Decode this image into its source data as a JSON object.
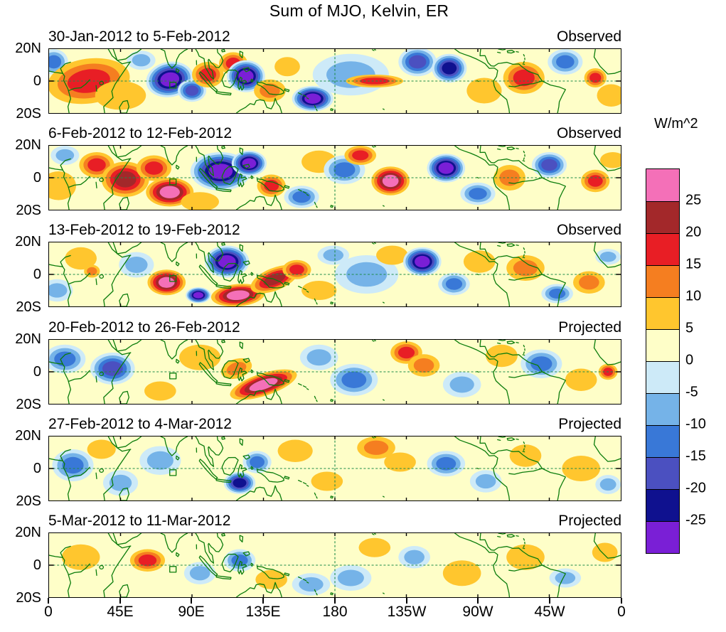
{
  "figure": {
    "title": "Sum of MJO, Kelvin, ER"
  },
  "chart_data": {
    "type": "heatmap",
    "title": "Sum of MJO, Kelvin, ER",
    "description_text": "Six weekly tropical-strip (20S-20N) filled-contour anomaly maps",
    "x_ticks": [
      "0",
      "45E",
      "90E",
      "135E",
      "180",
      "135W",
      "90W",
      "45W",
      "0"
    ],
    "y_ticks": [
      "20N",
      "0",
      "20S"
    ],
    "lon_range": [
      0,
      360
    ],
    "lat_range": [
      -20,
      20
    ],
    "colorbar": {
      "label": "W/m^2",
      "tick_labels": [
        "25",
        "20",
        "15",
        "10",
        "5",
        "0",
        "-5",
        "-10",
        "-15",
        "-20",
        "-25"
      ],
      "cells_top_to_bottom": [
        "#F470B8",
        "#A3282A",
        "#E81E25",
        "#F57E20",
        "#FFC62E",
        "#FEFEC8",
        "#CDEAF8",
        "#75B3E8",
        "#3978D7",
        "#4B50C0",
        "#0F118F",
        "#7A1FD6"
      ]
    },
    "map_colors": {
      "coastline": "#0B7C0B",
      "grid_dash": "#1E8C4A",
      "background": "#FEFEC8"
    },
    "panels": [
      {
        "date_range": "30-Jan-2012 to 5-Feb-2012",
        "status": "Observed",
        "anomalies": [
          [
            3,
            12,
            9,
            8,
            -12,
            0
          ],
          [
            25,
            0,
            26,
            14,
            18,
            -8
          ],
          [
            45,
            -9,
            16,
            9,
            8,
            0
          ],
          [
            58,
            13,
            9,
            6,
            -10,
            0
          ],
          [
            76,
            1,
            15,
            11,
            -28,
            -10
          ],
          [
            90,
            -6,
            9,
            7,
            -16,
            0
          ],
          [
            100,
            4,
            10,
            8,
            16,
            0
          ],
          [
            116,
            11,
            9,
            7,
            18,
            0
          ],
          [
            124,
            3,
            12,
            10,
            -27,
            0
          ],
          [
            139,
            -6,
            10,
            7,
            14,
            0
          ],
          [
            150,
            9,
            8,
            6,
            10,
            0
          ],
          [
            166,
            -11,
            13,
            8,
            -27,
            0
          ],
          [
            190,
            4,
            24,
            13,
            -6,
            0
          ],
          [
            205,
            0,
            18,
            4,
            16,
            0
          ],
          [
            232,
            12,
            12,
            9,
            -16,
            0
          ],
          [
            252,
            8,
            11,
            9,
            -24,
            0
          ],
          [
            274,
            -6,
            11,
            8,
            8,
            0
          ],
          [
            299,
            2,
            13,
            10,
            16,
            0
          ],
          [
            325,
            12,
            11,
            8,
            -14,
            0
          ],
          [
            344,
            2,
            7,
            6,
            18,
            0
          ],
          [
            354,
            -9,
            9,
            7,
            8,
            0
          ]
        ]
      },
      {
        "date_range": "6-Feb-2012 to 12-Feb-2012",
        "status": "Observed",
        "anomalies": [
          [
            6,
            -5,
            11,
            9,
            8,
            0
          ],
          [
            10,
            14,
            9,
            6,
            -10,
            0
          ],
          [
            30,
            8,
            11,
            8,
            16,
            0
          ],
          [
            48,
            -1,
            15,
            11,
            22,
            0
          ],
          [
            66,
            6,
            11,
            8,
            18,
            0
          ],
          [
            76,
            -9,
            15,
            9,
            28,
            0
          ],
          [
            95,
            -15,
            12,
            6,
            10,
            0
          ],
          [
            108,
            4,
            19,
            12,
            -28,
            0
          ],
          [
            126,
            9,
            11,
            8,
            -26,
            0
          ],
          [
            140,
            -5,
            9,
            7,
            16,
            0
          ],
          [
            159,
            -12,
            11,
            7,
            -14,
            0
          ],
          [
            170,
            10,
            11,
            7,
            8,
            0
          ],
          [
            186,
            5,
            13,
            9,
            -12,
            0
          ],
          [
            196,
            14,
            10,
            6,
            18,
            0
          ],
          [
            215,
            -2,
            12,
            9,
            27,
            0
          ],
          [
            250,
            6,
            12,
            9,
            -26,
            0
          ],
          [
            270,
            -10,
            11,
            7,
            -14,
            0
          ],
          [
            290,
            0,
            10,
            8,
            12,
            0
          ],
          [
            315,
            8,
            11,
            8,
            -16,
            0
          ],
          [
            344,
            -2,
            9,
            7,
            20,
            0
          ],
          [
            355,
            11,
            8,
            5,
            8,
            0
          ]
        ]
      },
      {
        "date_range": "13-Feb-2012 to 19-Feb-2012",
        "status": "Observed",
        "anomalies": [
          [
            5,
            -10,
            10,
            7,
            -8,
            0
          ],
          [
            20,
            10,
            10,
            7,
            6,
            0
          ],
          [
            27,
            2,
            5,
            4,
            12,
            0
          ],
          [
            55,
            6,
            11,
            8,
            -10,
            0
          ],
          [
            74,
            -5,
            12,
            8,
            26,
            0
          ],
          [
            94,
            -13,
            8,
            5,
            -27,
            0
          ],
          [
            112,
            8,
            14,
            10,
            -28,
            0
          ],
          [
            119,
            -13,
            17,
            7,
            28,
            -5
          ],
          [
            142,
            -3,
            16,
            7,
            24,
            -22
          ],
          [
            156,
            3,
            9,
            6,
            18,
            0
          ],
          [
            170,
            -10,
            11,
            6,
            8,
            0
          ],
          [
            179,
            12,
            10,
            6,
            -10,
            0
          ],
          [
            200,
            0,
            20,
            12,
            -6,
            0
          ],
          [
            216,
            12,
            10,
            6,
            6,
            0
          ],
          [
            235,
            8,
            12,
            9,
            -27,
            0
          ],
          [
            255,
            -6,
            10,
            7,
            -12,
            0
          ],
          [
            271,
            8,
            10,
            7,
            8,
            0
          ],
          [
            300,
            4,
            12,
            8,
            14,
            0
          ],
          [
            320,
            -12,
            10,
            6,
            -12,
            0
          ],
          [
            340,
            -5,
            10,
            7,
            12,
            0
          ],
          [
            352,
            11,
            8,
            5,
            -10,
            0
          ]
        ]
      },
      {
        "date_range": "20-Feb-2012 to 26-Feb-2012",
        "status": "Projected",
        "anomalies": [
          [
            10,
            8,
            13,
            9,
            -14,
            0
          ],
          [
            40,
            2,
            14,
            10,
            -16,
            0
          ],
          [
            70,
            -12,
            10,
            6,
            6,
            0
          ],
          [
            95,
            9,
            13,
            8,
            8,
            0
          ],
          [
            118,
            2,
            10,
            6,
            12,
            -18
          ],
          [
            135,
            -8,
            22,
            7,
            27,
            -18
          ],
          [
            170,
            9,
            12,
            8,
            -10,
            0
          ],
          [
            192,
            -5,
            15,
            10,
            -14,
            0
          ],
          [
            225,
            12,
            10,
            7,
            18,
            0
          ],
          [
            236,
            4,
            10,
            7,
            12,
            0
          ],
          [
            260,
            -8,
            12,
            8,
            -10,
            0
          ],
          [
            285,
            10,
            10,
            7,
            6,
            0
          ],
          [
            310,
            5,
            13,
            9,
            -12,
            0
          ],
          [
            335,
            -5,
            10,
            7,
            8,
            0
          ],
          [
            352,
            0,
            6,
            5,
            16,
            0
          ]
        ]
      },
      {
        "date_range": "27-Feb-2012 to 4-Mar-2012",
        "status": "Projected",
        "anomalies": [
          [
            15,
            2,
            13,
            10,
            -12,
            0
          ],
          [
            33,
            12,
            9,
            6,
            6,
            0
          ],
          [
            45,
            -9,
            11,
            8,
            -10,
            0
          ],
          [
            70,
            5,
            13,
            9,
            -8,
            0
          ],
          [
            120,
            -9,
            10,
            7,
            -24,
            0
          ],
          [
            131,
            4,
            9,
            7,
            -12,
            0
          ],
          [
            155,
            11,
            11,
            7,
            8,
            0
          ],
          [
            175,
            -8,
            10,
            6,
            6,
            0
          ],
          [
            206,
            13,
            12,
            7,
            14,
            0
          ],
          [
            221,
            4,
            10,
            6,
            8,
            0
          ],
          [
            250,
            3,
            12,
            8,
            -12,
            0
          ],
          [
            275,
            -8,
            10,
            7,
            -8,
            0
          ],
          [
            300,
            8,
            10,
            7,
            6,
            0
          ],
          [
            335,
            0,
            12,
            8,
            8,
            0
          ],
          [
            352,
            -10,
            8,
            6,
            -8,
            0
          ]
        ]
      },
      {
        "date_range": "5-Mar-2012 to 11-Mar-2012",
        "status": "Projected",
        "anomalies": [
          [
            20,
            5,
            12,
            8,
            8,
            0
          ],
          [
            62,
            3,
            11,
            7,
            18,
            0
          ],
          [
            95,
            -5,
            10,
            7,
            -8,
            0
          ],
          [
            120,
            3,
            10,
            7,
            -12,
            0
          ],
          [
            140,
            -9,
            10,
            6,
            6,
            0
          ],
          [
            165,
            -12,
            12,
            7,
            -10,
            0
          ],
          [
            190,
            -8,
            13,
            8,
            -10,
            0
          ],
          [
            205,
            11,
            10,
            6,
            6,
            0
          ],
          [
            230,
            5,
            10,
            7,
            -8,
            0
          ],
          [
            260,
            -5,
            12,
            8,
            6,
            0
          ],
          [
            300,
            5,
            12,
            8,
            8,
            0
          ],
          [
            325,
            -8,
            10,
            6,
            -8,
            0
          ],
          [
            350,
            8,
            8,
            6,
            6,
            0
          ]
        ]
      }
    ]
  }
}
